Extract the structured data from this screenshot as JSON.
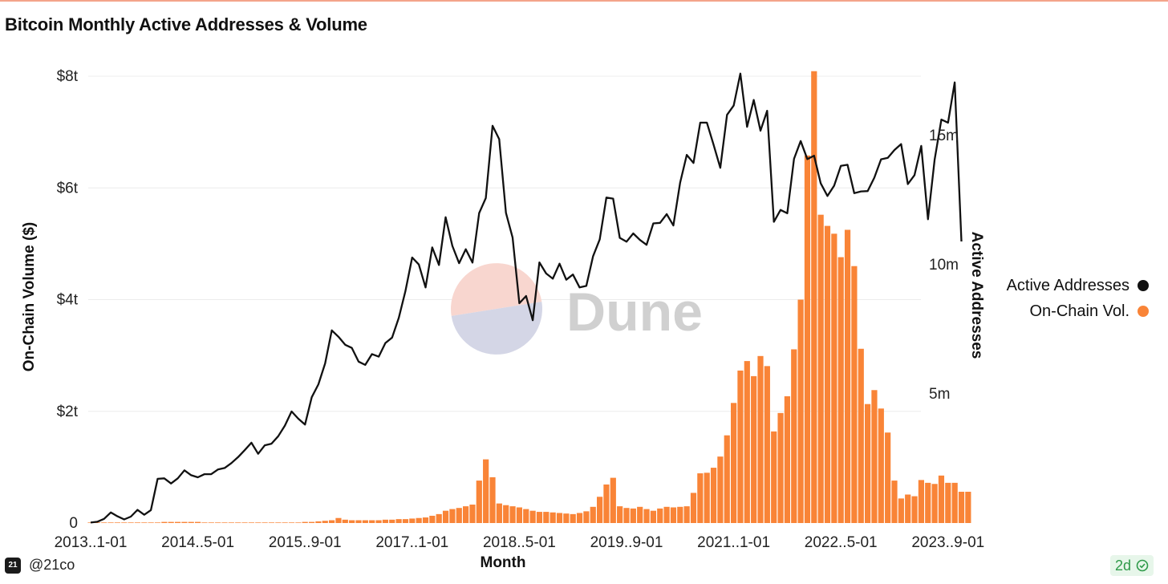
{
  "header": {
    "title": "Bitcoin Monthly Active Addresses & Volume"
  },
  "watermark": {
    "text": "Dune",
    "pie_colors": [
      "#f8d6cf",
      "#d4d6e6"
    ]
  },
  "footer": {
    "handle": "@21co",
    "brand_logo": "21",
    "age_badge": "2d",
    "badge_icon": "verified-check-icon"
  },
  "colors": {
    "volume_bar": "#f98437",
    "address_line": "#111111",
    "grid": "#ececec",
    "badge_green": "#2e9a49"
  },
  "chart_data": {
    "type": "bar",
    "title": "Bitcoin Monthly Active Addresses & Volume",
    "xlabel": "Month",
    "x_tick_labels": [
      "2013..1-01",
      "2014..5-01",
      "2015..9-01",
      "2017..1-01",
      "2018..5-01",
      "2019..9-01",
      "2021..1-01",
      "2022..5-01",
      "2023..9-01"
    ],
    "y_left": {
      "label": "On-Chain Volume ($)",
      "ticks": [
        "0",
        "$2t",
        "$4t",
        "$6t",
        "$8t"
      ],
      "tick_values": [
        0,
        2,
        4,
        6,
        8
      ],
      "unit": "trillion USD",
      "range": [
        0,
        8
      ]
    },
    "y_right": {
      "label": "Active Addresses",
      "ticks": [
        "5m",
        "10m",
        "15m"
      ],
      "tick_values": [
        5,
        10,
        15
      ],
      "unit": "million",
      "range": [
        0,
        17.4
      ]
    },
    "legend": {
      "position": "right",
      "entries": [
        {
          "name": "Active Addresses",
          "color": "#111111"
        },
        {
          "name": "On-Chain Vol.",
          "color": "#f98437"
        }
      ]
    },
    "grid": true,
    "series": [
      {
        "name": "On-Chain Vol.",
        "type": "bar",
        "axis": "left",
        "unit": "trillion USD",
        "color": "#f98437",
        "start": "2013-01",
        "values": [
          0.01,
          0.01,
          0.01,
          0.01,
          0.01,
          0.01,
          0.01,
          0.01,
          0.01,
          0.01,
          0.01,
          0.02,
          0.02,
          0.02,
          0.02,
          0.02,
          0.02,
          0.01,
          0.01,
          0.01,
          0.01,
          0.01,
          0.01,
          0.01,
          0.01,
          0.01,
          0.01,
          0.01,
          0.01,
          0.01,
          0.01,
          0.01,
          0.02,
          0.02,
          0.03,
          0.04,
          0.05,
          0.09,
          0.06,
          0.05,
          0.05,
          0.05,
          0.05,
          0.05,
          0.06,
          0.06,
          0.07,
          0.07,
          0.08,
          0.09,
          0.1,
          0.13,
          0.16,
          0.22,
          0.25,
          0.27,
          0.3,
          0.33,
          0.76,
          1.14,
          0.82,
          0.35,
          0.32,
          0.3,
          0.28,
          0.25,
          0.22,
          0.2,
          0.2,
          0.19,
          0.18,
          0.17,
          0.16,
          0.18,
          0.21,
          0.29,
          0.47,
          0.69,
          0.81,
          0.3,
          0.27,
          0.26,
          0.29,
          0.25,
          0.22,
          0.26,
          0.29,
          0.28,
          0.29,
          0.3,
          0.54,
          0.89,
          0.9,
          0.99,
          1.19,
          1.57,
          2.15,
          2.73,
          2.9,
          2.63,
          2.99,
          2.81,
          1.64,
          1.97,
          2.27,
          3.11,
          4.0,
          6.58,
          8.09,
          5.52,
          5.32,
          5.18,
          4.76,
          5.25,
          4.6,
          3.12,
          2.13,
          2.38,
          2.05,
          1.62,
          0.76,
          0.44,
          0.51,
          0.48,
          0.77,
          0.72,
          0.7,
          0.85,
          0.72,
          0.72,
          0.56,
          0.56
        ]
      },
      {
        "name": "Active Addresses",
        "type": "line",
        "axis": "right",
        "unit": "million",
        "color": "#111111",
        "start": "2013-01",
        "values": [
          0.02,
          0.05,
          0.16,
          0.41,
          0.26,
          0.14,
          0.25,
          0.51,
          0.32,
          0.5,
          1.71,
          1.73,
          1.53,
          1.73,
          2.04,
          1.85,
          1.77,
          1.89,
          1.89,
          2.07,
          2.13,
          2.32,
          2.55,
          2.82,
          3.11,
          2.68,
          3.01,
          3.07,
          3.36,
          3.77,
          4.32,
          4.04,
          3.81,
          4.87,
          5.37,
          6.18,
          7.46,
          7.21,
          6.9,
          6.78,
          6.25,
          6.12,
          6.54,
          6.44,
          6.97,
          7.18,
          7.94,
          8.98,
          10.28,
          10.01,
          9.12,
          10.67,
          9.99,
          11.84,
          10.73,
          10.06,
          10.6,
          10.08,
          12.0,
          12.58,
          15.38,
          14.86,
          12.01,
          11.05,
          8.51,
          8.79,
          7.85,
          10.09,
          9.66,
          9.46,
          10.04,
          9.42,
          9.62,
          9.12,
          9.18,
          10.33,
          10.98,
          12.6,
          12.56,
          11.04,
          10.89,
          11.21,
          10.96,
          10.77,
          11.6,
          11.62,
          11.96,
          11.52,
          13.17,
          14.25,
          13.94,
          15.5,
          15.5,
          14.65,
          13.75,
          15.8,
          16.16,
          17.4,
          15.34,
          16.38,
          15.19,
          15.96,
          11.66,
          12.12,
          11.99,
          14.1,
          14.79,
          14.09,
          14.22,
          13.15,
          12.66,
          13.06,
          13.83,
          13.87,
          12.77,
          12.84,
          12.85,
          13.37,
          14.08,
          14.14,
          14.44,
          14.67,
          13.12,
          13.47,
          14.6,
          11.76,
          14.07,
          15.62,
          15.5,
          17.06,
          10.9
        ]
      }
    ]
  }
}
